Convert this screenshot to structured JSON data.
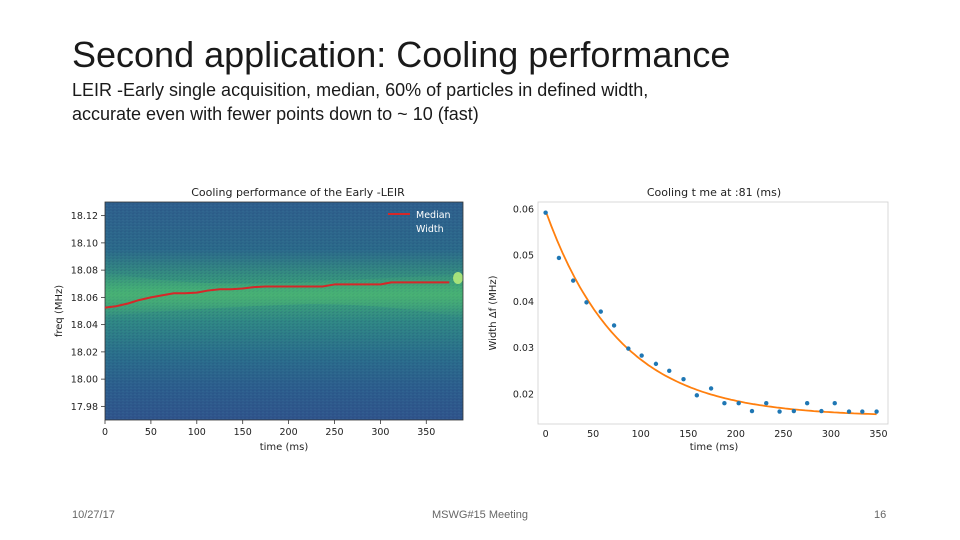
{
  "slide": {
    "title": "Second application: Cooling performance",
    "subtitle_line1": "LEIR -Early single acquisition, median, 60% of particles in defined width,",
    "subtitle_line2": "accurate even with fewer points down to ~ 10 (fast)"
  },
  "footer": {
    "date": "10/27/17",
    "meeting": "MSWG#15 Meeting",
    "page": "16"
  },
  "chart_data": [
    {
      "type": "line",
      "title": "Cooling performance of the Early -LEIR",
      "xlabel": "time (ms)",
      "ylabel": "freq (MHz)",
      "xlim": [
        0,
        390
      ],
      "ylim": [
        17.97,
        18.13
      ],
      "xticks": [
        0,
        50,
        100,
        150,
        200,
        250,
        300,
        350
      ],
      "yticks": [
        17.98,
        18.0,
        18.02,
        18.04,
        18.06,
        18.08,
        18.1,
        18.12
      ],
      "legend_position": "top-right",
      "background": "spectrogram heatmap",
      "series": [
        {
          "name": "Median",
          "color": "#d62728",
          "x": [
            0,
            12,
            25,
            37,
            50,
            62,
            75,
            87,
            100,
            112,
            125,
            137,
            150,
            162,
            175,
            187,
            200,
            212,
            225,
            237,
            250,
            262,
            275,
            287,
            300,
            312,
            325,
            337,
            350,
            375
          ],
          "y": [
            18.0525,
            18.0535,
            18.0555,
            18.058,
            18.06,
            18.0615,
            18.063,
            18.063,
            18.0635,
            18.065,
            18.066,
            18.066,
            18.0665,
            18.0675,
            18.068,
            18.068,
            18.068,
            18.068,
            18.068,
            18.068,
            18.0695,
            18.0695,
            18.0695,
            18.0695,
            18.0695,
            18.071,
            18.071,
            18.071,
            18.071,
            18.071
          ]
        },
        {
          "name": "Width",
          "color": "#ffffff",
          "x": [],
          "y": []
        }
      ]
    },
    {
      "type": "scatter",
      "title": "Cooling t me at :81 (ms)",
      "xlabel": "time (ms)",
      "ylabel": "Width Δf (MHz)",
      "xlim": [
        -8,
        360
      ],
      "ylim": [
        0.0135,
        0.0615
      ],
      "xticks": [
        0,
        50,
        100,
        150,
        200,
        250,
        300,
        350
      ],
      "yticks": [
        0.02,
        0.03,
        0.04,
        0.05,
        0.06
      ],
      "grid": false,
      "series": [
        {
          "name": "",
          "color": "#1f77b4",
          "x": [
            0,
            14,
            29,
            43,
            58,
            72,
            87,
            101,
            116,
            130,
            145,
            159,
            174,
            188,
            203,
            217,
            232,
            246,
            261,
            275,
            290,
            304,
            319,
            333,
            348
          ],
          "y": [
            0.0592,
            0.0494,
            0.0445,
            0.0398,
            0.0378,
            0.0348,
            0.0298,
            0.0283,
            0.0265,
            0.025,
            0.0232,
            0.0197,
            0.0212,
            0.018,
            0.018,
            0.0163,
            0.018,
            0.0162,
            0.0163,
            0.018,
            0.0163,
            0.018,
            0.0162,
            0.0162,
            0.0162
          ]
        },
        {
          "name": "",
          "color": "#ff7f0e",
          "fit": "exponential",
          "a": 0.0445,
          "tau": 78,
          "c": 0.0151
        }
      ]
    }
  ]
}
